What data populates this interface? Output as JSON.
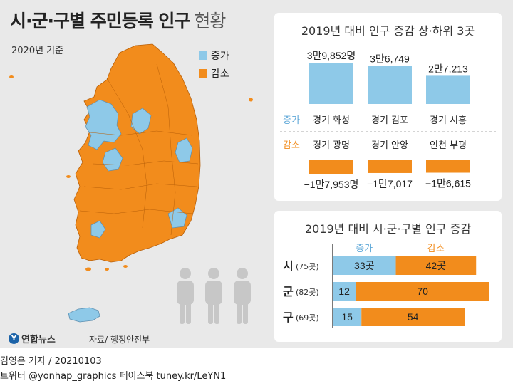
{
  "header": {
    "title_main": "시·군·구별 주민등록 인구",
    "title_sub": "현황",
    "base_year": "2020년 기준"
  },
  "legend": {
    "items": [
      {
        "label": "증가",
        "color": "#8ec9e8"
      },
      {
        "label": "감소",
        "color": "#f28c1c"
      }
    ]
  },
  "colors": {
    "increase": "#8ec9e8",
    "decrease": "#f28c1c",
    "increase_text": "#5fa8d8",
    "decrease_text": "#f28c1c",
    "background": "#e9e9e9"
  },
  "source": "자료/ 행정안전부",
  "logo": "연합뉴스",
  "credits": {
    "line1": "김영은 기자 / 20210103",
    "line2": "트위터 @yonhap_graphics  페이스북 tuney.kr/LeYN1"
  },
  "chart_data": [
    {
      "type": "bar",
      "title": "2019년 대비 인구 증감 상·하위 3곳",
      "series": [
        {
          "name": "증가",
          "categories": [
            "경기 화성",
            "경기 김포",
            "경기 시흥"
          ],
          "values": [
            39852,
            36749,
            27213
          ],
          "value_labels": [
            "3만9,852명",
            "3만6,749",
            "2만7,213"
          ]
        },
        {
          "name": "감소",
          "categories": [
            "경기 광명",
            "경기 안양",
            "인천 부평"
          ],
          "values": [
            -17953,
            -17017,
            -16615
          ],
          "value_labels": [
            "−1만7,953명",
            "−1만7,017",
            "−1만6,615"
          ]
        }
      ]
    },
    {
      "type": "bar",
      "title": "2019년 대비 시·군·구별 인구 증감",
      "stacked": true,
      "orientation": "horizontal",
      "categories": [
        {
          "label": "시",
          "count": "(75곳)"
        },
        {
          "label": "군",
          "count": "(82곳)"
        },
        {
          "label": "구",
          "count": "(69곳)"
        }
      ],
      "series": [
        {
          "name": "증가",
          "values": [
            33,
            12,
            15
          ],
          "value_labels": [
            "33곳",
            "12",
            "15"
          ]
        },
        {
          "name": "감소",
          "values": [
            42,
            70,
            54
          ],
          "value_labels": [
            "42곳",
            "70",
            "54"
          ]
        }
      ]
    }
  ]
}
